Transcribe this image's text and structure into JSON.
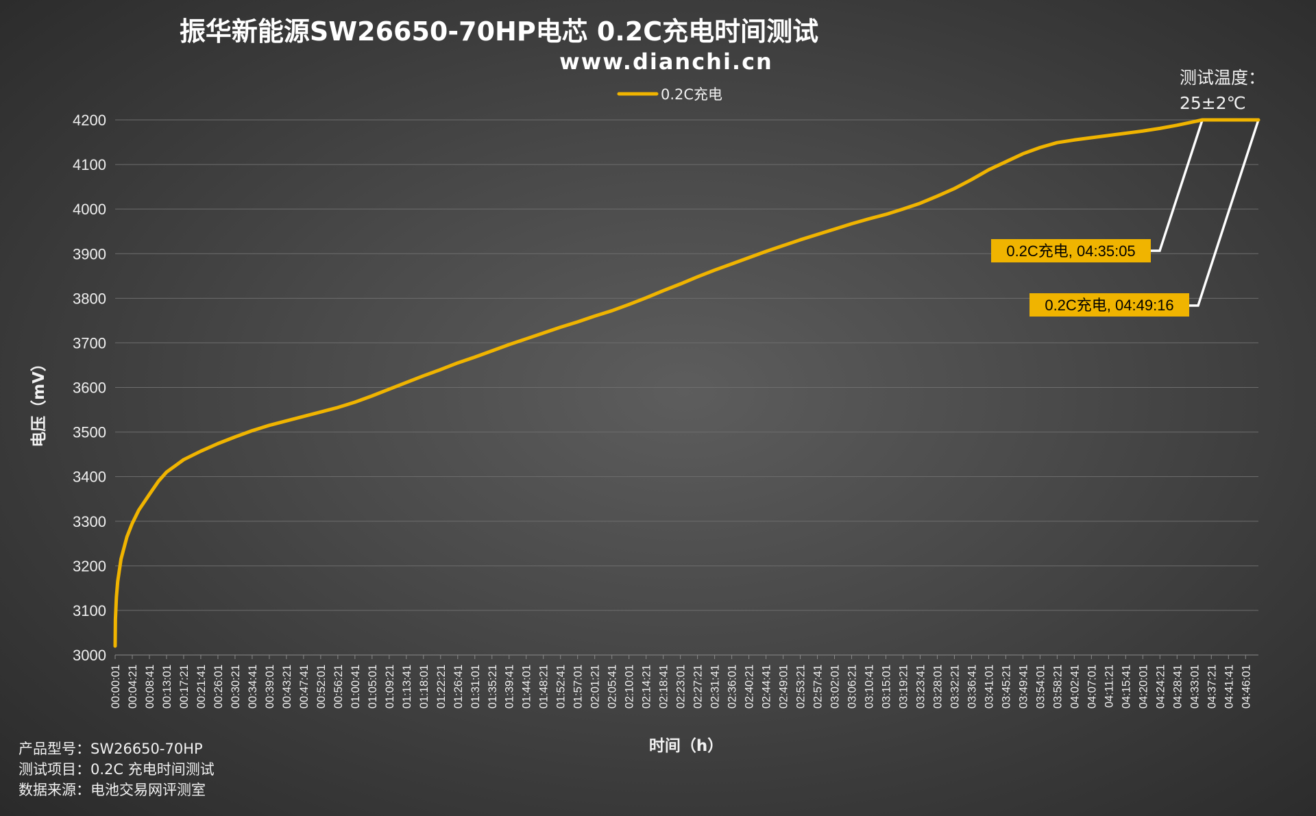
{
  "chart_data": {
    "type": "line",
    "title": "振华新能源SW26650-70HP电芯 0.2C充电时间测试",
    "subtitle": "www.dianchi.cn",
    "xlabel": "时间（h）",
    "ylabel": "电压（mV）",
    "ylim": [
      3000,
      4200
    ],
    "yticks": [
      3000,
      3100,
      3200,
      3300,
      3400,
      3500,
      3600,
      3700,
      3800,
      3900,
      4000,
      4100,
      4200
    ],
    "xlim": [
      "00:00:01",
      "04:49:16"
    ],
    "xticks": [
      "00:00:01",
      "00:04:21",
      "00:08:41",
      "00:13:01",
      "00:17:21",
      "00:21:41",
      "00:26:01",
      "00:30:21",
      "00:34:41",
      "00:39:01",
      "00:43:21",
      "00:47:41",
      "00:52:01",
      "00:56:21",
      "01:00:41",
      "01:05:01",
      "01:09:21",
      "01:13:41",
      "01:18:01",
      "01:22:21",
      "01:26:41",
      "01:31:01",
      "01:35:21",
      "01:39:41",
      "01:44:01",
      "01:48:21",
      "01:52:41",
      "01:57:01",
      "02:01:21",
      "02:05:41",
      "02:10:01",
      "02:14:21",
      "02:18:41",
      "02:23:01",
      "02:27:21",
      "02:31:41",
      "02:36:01",
      "02:40:21",
      "02:44:41",
      "02:49:01",
      "02:53:21",
      "02:57:41",
      "03:02:01",
      "03:06:21",
      "03:10:41",
      "03:15:01",
      "03:19:21",
      "03:23:41",
      "03:28:01",
      "03:32:21",
      "03:36:41",
      "03:41:01",
      "03:45:21",
      "03:49:41",
      "03:54:01",
      "03:58:21",
      "04:02:41",
      "04:07:01",
      "04:11:21",
      "04:15:41",
      "04:20:01",
      "04:24:21",
      "04:28:41",
      "04:33:01",
      "04:37:21",
      "04:41:41",
      "04:46:01"
    ],
    "grid": true,
    "legend_position": "top-center",
    "series": [
      {
        "name": "0.2C充电",
        "color": "#f0b400",
        "points": [
          [
            "00:00:01",
            3020
          ],
          [
            "00:00:05",
            3080
          ],
          [
            "00:00:20",
            3130
          ],
          [
            "00:00:40",
            3165
          ],
          [
            "00:01:30",
            3215
          ],
          [
            "00:03:00",
            3265
          ],
          [
            "00:04:20",
            3295
          ],
          [
            "00:06:00",
            3325
          ],
          [
            "00:08:40",
            3360
          ],
          [
            "00:11:00",
            3390
          ],
          [
            "00:13:00",
            3410
          ],
          [
            "00:17:20",
            3438
          ],
          [
            "00:21:40",
            3457
          ],
          [
            "00:26:00",
            3474
          ],
          [
            "00:30:20",
            3489
          ],
          [
            "00:34:40",
            3503
          ],
          [
            "00:39:00",
            3515
          ],
          [
            "00:43:20",
            3525
          ],
          [
            "00:47:40",
            3535
          ],
          [
            "00:52:00",
            3545
          ],
          [
            "00:56:20",
            3555
          ],
          [
            "01:00:40",
            3567
          ],
          [
            "01:05:00",
            3581
          ],
          [
            "01:09:20",
            3596
          ],
          [
            "01:13:40",
            3611
          ],
          [
            "01:18:00",
            3626
          ],
          [
            "01:22:20",
            3640
          ],
          [
            "01:26:40",
            3655
          ],
          [
            "01:31:00",
            3668
          ],
          [
            "01:35:20",
            3682
          ],
          [
            "01:39:40",
            3696
          ],
          [
            "01:44:00",
            3709
          ],
          [
            "01:48:20",
            3722
          ],
          [
            "01:52:40",
            3735
          ],
          [
            "01:57:00",
            3747
          ],
          [
            "02:01:20",
            3760
          ],
          [
            "02:05:40",
            3772
          ],
          [
            "02:10:00",
            3786
          ],
          [
            "02:14:20",
            3801
          ],
          [
            "02:18:40",
            3817
          ],
          [
            "02:23:00",
            3832
          ],
          [
            "02:27:20",
            3848
          ],
          [
            "02:31:40",
            3863
          ],
          [
            "02:36:00",
            3877
          ],
          [
            "02:40:20",
            3891
          ],
          [
            "02:44:40",
            3905
          ],
          [
            "02:49:00",
            3918
          ],
          [
            "02:53:20",
            3931
          ],
          [
            "02:57:40",
            3943
          ],
          [
            "03:02:00",
            3955
          ],
          [
            "03:06:20",
            3967
          ],
          [
            "03:10:40",
            3978
          ],
          [
            "03:15:00",
            3988
          ],
          [
            "03:19:20",
            4000
          ],
          [
            "03:23:40",
            4013
          ],
          [
            "03:28:00",
            4029
          ],
          [
            "03:32:20",
            4046
          ],
          [
            "03:36:40",
            4066
          ],
          [
            "03:41:00",
            4088
          ],
          [
            "03:45:20",
            4106
          ],
          [
            "03:49:40",
            4124
          ],
          [
            "03:54:00",
            4138
          ],
          [
            "03:58:20",
            4149
          ],
          [
            "04:02:40",
            4155
          ],
          [
            "04:07:00",
            4160
          ],
          [
            "04:11:20",
            4165
          ],
          [
            "04:15:40",
            4170
          ],
          [
            "04:20:00",
            4175
          ],
          [
            "04:24:20",
            4181
          ],
          [
            "04:28:40",
            4188
          ],
          [
            "04:33:00",
            4196
          ],
          [
            "04:35:05",
            4200
          ],
          [
            "04:49:16",
            4200
          ]
        ]
      }
    ],
    "annotations": [
      {
        "text": "0.2C充电, 04:35:05",
        "x": "04:35:05",
        "y": 4200,
        "bg": "#f0b400",
        "fg": "#000000"
      },
      {
        "text": "0.2C充电, 04:49:16",
        "x": "04:49:16",
        "y": 4200,
        "bg": "#f0b400",
        "fg": "#000000"
      }
    ],
    "note": {
      "line1": "测试温度：",
      "line2": "25±2℃"
    }
  },
  "footer": {
    "model": "产品型号：SW26650-70HP",
    "item": "测试项目：0.2C 充电时间测试",
    "source": "数据来源：电池交易网评测室"
  }
}
